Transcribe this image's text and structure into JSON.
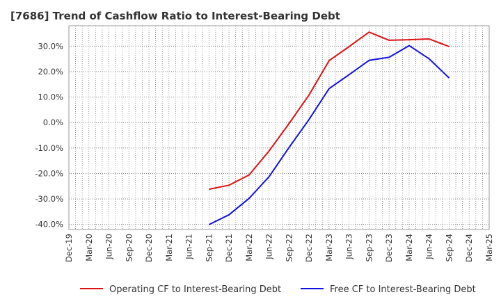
{
  "chart_data": {
    "type": "line",
    "title": "[7686]  Trend of Cashflow Ratio to Interest-Bearing Debt",
    "xlabel": "",
    "ylabel": "",
    "categories": [
      "Dec-19",
      "Mar-20",
      "Jun-20",
      "Sep-20",
      "Dec-20",
      "Mar-21",
      "Jun-21",
      "Sep-21",
      "Dec-21",
      "Mar-22",
      "Jun-22",
      "Sep-22",
      "Dec-22",
      "Mar-23",
      "Jun-23",
      "Sep-23",
      "Dec-23",
      "Mar-24",
      "Jun-24",
      "Sep-24",
      "Dec-24",
      "Mar-25"
    ],
    "ylim": [
      -42,
      38
    ],
    "yticks": [
      -40,
      -30,
      -20,
      -10,
      0,
      10,
      20,
      30
    ],
    "ytick_labels": [
      "-40.0%",
      "-30.0%",
      "-20.0%",
      "-10.0%",
      "0.0%",
      "10.0%",
      "20.0%",
      "30.0%"
    ],
    "grid": true,
    "legend_position": "bottom",
    "series": [
      {
        "name": "Operating CF to Interest-Bearing Debt",
        "color": "#dd1111",
        "values": [
          null,
          null,
          null,
          null,
          null,
          null,
          null,
          -26.2,
          -24.6,
          -20.6,
          -11.2,
          -0.4,
          10.8,
          24.3,
          29.8,
          35.5,
          32.3,
          32.5,
          32.8,
          29.8,
          null,
          null
        ]
      },
      {
        "name": "Free CF to Interest-Bearing Debt",
        "color": "#1111dd",
        "values": [
          null,
          null,
          null,
          null,
          null,
          null,
          null,
          -40.1,
          -36.2,
          -29.8,
          -21.3,
          -9.8,
          1.2,
          13.3,
          18.8,
          24.4,
          25.6,
          30.2,
          25.0,
          17.5,
          null,
          null
        ]
      }
    ]
  }
}
